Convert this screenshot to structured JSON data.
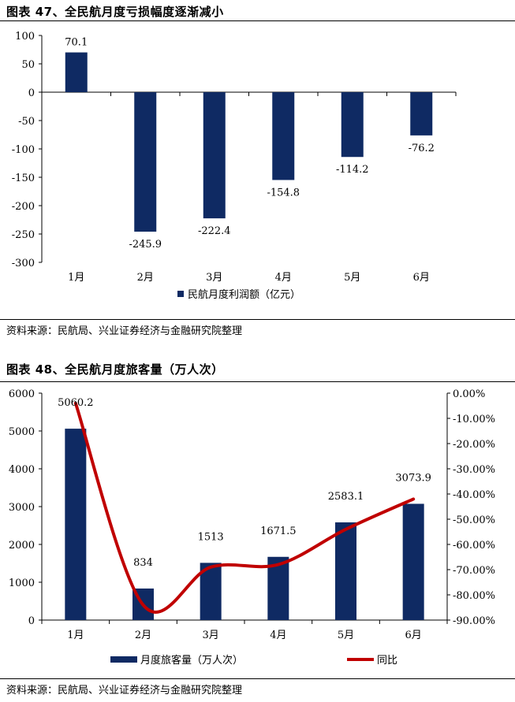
{
  "fig47": {
    "title": "图表 47、全民航月度亏损幅度逐渐减小",
    "source": "资料来源：民航局、兴业证券经济与金融研究院整理",
    "chart_data": {
      "type": "bar",
      "categories": [
        "1月",
        "2月",
        "3月",
        "4月",
        "5月",
        "6月"
      ],
      "series": [
        {
          "name": "民航月度利润额（亿元）",
          "values": [
            70.1,
            -245.9,
            -222.4,
            -154.8,
            -114.2,
            -76.2
          ]
        }
      ],
      "data_labels": [
        "70.1",
        "-245.9",
        "-222.4",
        "-154.8",
        "-114.2",
        "-76.2"
      ],
      "ylim": [
        -300,
        100
      ],
      "yticks": [
        100,
        50,
        0,
        -50,
        -100,
        -150,
        -200,
        -250,
        -300
      ],
      "ytick_labels": [
        "100",
        "50",
        "0",
        "-50",
        "-100",
        "-150",
        "-200",
        "-250",
        "-300"
      ],
      "legend_position": "bottom",
      "grid": false,
      "colors": {
        "bar": "#0f2a63"
      }
    }
  },
  "fig48": {
    "title": "图表 48、全民航月度旅客量（万人次）",
    "source": "资料来源：民航局、兴业证券经济与金融研究院整理",
    "chart_data": {
      "type": "bar+line",
      "categories": [
        "1月",
        "2月",
        "3月",
        "4月",
        "5月",
        "6月"
      ],
      "series": [
        {
          "name": "月度旅客量（万人次）",
          "type": "bar",
          "axis": "left",
          "values": [
            5060.2,
            834,
            1513,
            1671.5,
            2583.1,
            3073.9
          ]
        },
        {
          "name": "同比",
          "type": "line",
          "axis": "right",
          "values": [
            -0.04,
            -0.84,
            -0.69,
            -0.68,
            -0.54,
            -0.42
          ]
        }
      ],
      "data_labels": [
        "5060.2",
        "834",
        "1513",
        "1671.5",
        "2583.1",
        "3073.9"
      ],
      "ylim_left": [
        0,
        6000
      ],
      "yticks_left": [
        0,
        1000,
        2000,
        3000,
        4000,
        5000,
        6000
      ],
      "ytick_labels_left": [
        "0",
        "1000",
        "2000",
        "3000",
        "4000",
        "5000",
        "6000"
      ],
      "ylim_right": [
        -0.9,
        0
      ],
      "yticks_right": [
        0,
        -0.1,
        -0.2,
        -0.3,
        -0.4,
        -0.5,
        -0.6,
        -0.7,
        -0.8,
        -0.9
      ],
      "ytick_labels_right": [
        "0.00%",
        "-10.00%",
        "-20.00%",
        "-30.00%",
        "-40.00%",
        "-50.00%",
        "-60.00%",
        "-70.00%",
        "-80.00%",
        "-90.00%"
      ],
      "legend_position": "bottom",
      "grid": false,
      "colors": {
        "bar": "#0f2a63",
        "line": "#c00000"
      }
    }
  }
}
